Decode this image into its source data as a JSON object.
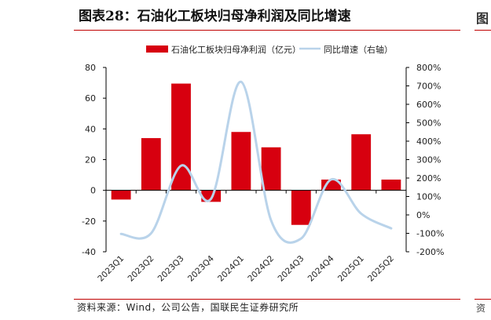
{
  "header": {
    "title": "图表28：石油化工板块归母净利润及同比增速"
  },
  "footer": {
    "source": "资料来源：Wind，公司公告，国联民生证券研究所"
  },
  "colors": {
    "bar": "#d7000f",
    "line": "#b9d3ea",
    "rule": "#c00000"
  },
  "chart_data": {
    "type": "bar+line",
    "categories": [
      "2023Q1",
      "2023Q2",
      "2023Q3",
      "2023Q4",
      "2024Q1",
      "2024Q2",
      "2024Q3",
      "2024Q4",
      "2025Q1",
      "2025Q2"
    ],
    "series": [
      {
        "name": "石油化工板块归母净利润（亿元）",
        "type": "bar",
        "axis": "left",
        "values": [
          -6,
          34,
          69.5,
          -7.5,
          38,
          28,
          -22.5,
          7,
          36.5,
          7
        ]
      },
      {
        "name": "同比增速（右轴）",
        "type": "line",
        "axis": "right",
        "values": [
          -103,
          -100,
          267,
          88,
          722,
          -30,
          -128,
          192,
          7,
          -73
        ]
      }
    ],
    "y_left": {
      "min": -40,
      "max": 80,
      "ticks": [
        80,
        60,
        40,
        20,
        0,
        -20,
        -40
      ]
    },
    "y_right": {
      "min": -200,
      "max": 800,
      "ticks": [
        "800%",
        "700%",
        "600%",
        "500%",
        "400%",
        "300%",
        "200%",
        "100%",
        "0%",
        "-100%",
        "-200%"
      ]
    },
    "legend_position": "top-center",
    "grid": false
  }
}
